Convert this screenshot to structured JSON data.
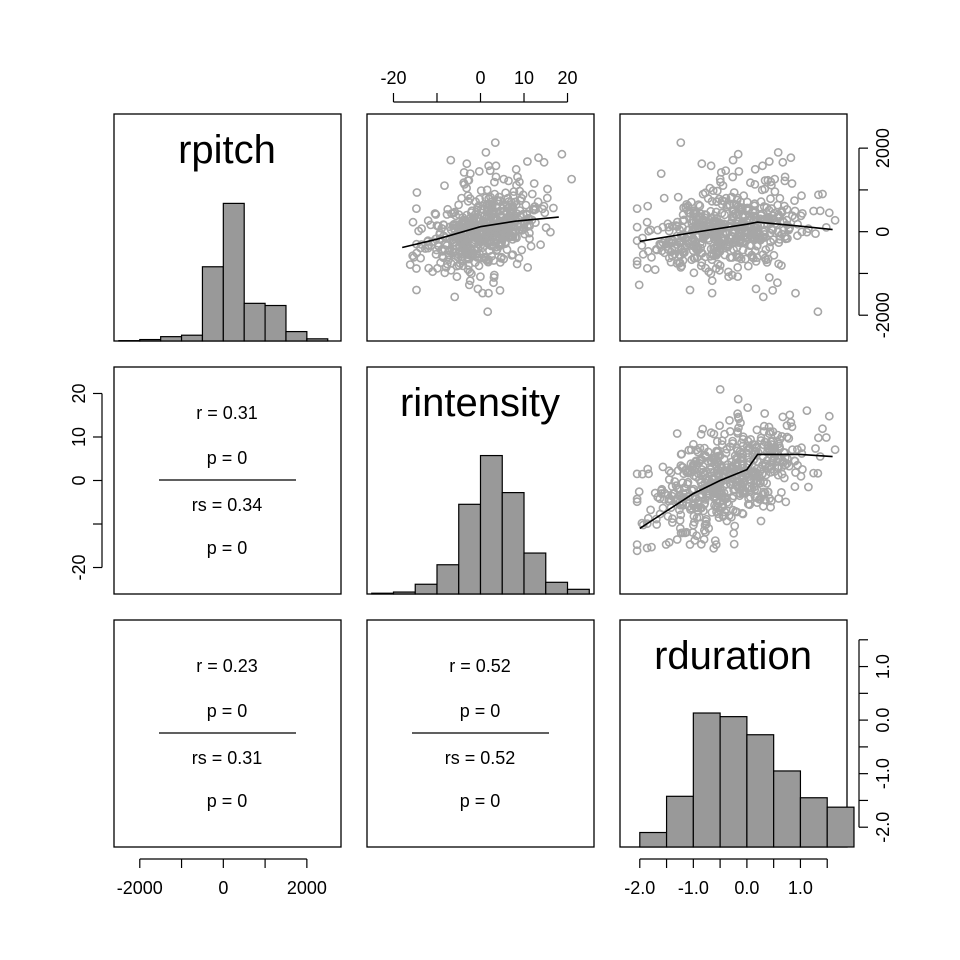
{
  "colors": {
    "point": "#a6a6a6",
    "bar": "#999999",
    "line": "#000000"
  },
  "chart_data": {
    "type": "scatter",
    "variables": [
      "rpitch",
      "rintensity",
      "rduration"
    ],
    "variable_ranges": {
      "rpitch": [
        -2400,
        2600
      ],
      "rintensity": [
        -24,
        24
      ],
      "rduration": [
        -2.2,
        1.7
      ]
    },
    "axes": {
      "top": {
        "variable": "rintensity",
        "ticks": [
          -20,
          -10,
          0,
          10,
          20
        ],
        "labels": [
          "-20",
          "",
          "0",
          "10",
          "20"
        ]
      },
      "right_row1": {
        "variable": "rpitch",
        "ticks": [
          -2000,
          -1000,
          0,
          1000,
          2000
        ],
        "labels": [
          "-2000",
          "",
          "0",
          "",
          "2000"
        ]
      },
      "left_row2": {
        "variable": "rintensity",
        "ticks": [
          -20,
          -10,
          0,
          10,
          20
        ],
        "labels": [
          "-20",
          "",
          "0",
          "10",
          "20"
        ]
      },
      "right_row3": {
        "variable": "rduration",
        "ticks": [
          -2.0,
          -1.5,
          -1.0,
          -0.5,
          0.0,
          0.5,
          1.0,
          1.5
        ],
        "labels": [
          "-2.0",
          "",
          "-1.0",
          "",
          "0.0",
          "",
          "1.0",
          ""
        ]
      },
      "bottom_col1": {
        "variable": "rpitch",
        "ticks": [
          -2000,
          -1000,
          0,
          1000,
          2000
        ],
        "labels": [
          "-2000",
          "",
          "0",
          "",
          "2000"
        ]
      },
      "bottom_col3": {
        "variable": "rduration",
        "ticks": [
          -2.0,
          -1.5,
          -1.0,
          -0.5,
          0.0,
          0.5,
          1.0,
          1.5
        ],
        "labels": [
          "-2.0",
          "",
          "-1.0",
          "",
          "0.0",
          "",
          "1.0",
          ""
        ]
      }
    },
    "histograms": {
      "rpitch": {
        "breaks": [
          -2500,
          -2000,
          -1500,
          -1000,
          -500,
          0,
          500,
          1000,
          1500,
          2000,
          2500
        ],
        "counts": [
          1,
          4,
          12,
          16,
          205,
          380,
          104,
          98,
          26,
          6
        ],
        "ymax": 420
      },
      "rintensity": {
        "breaks": [
          -25,
          -20,
          -15,
          -10,
          -5,
          0,
          5,
          10,
          15,
          20,
          25
        ],
        "counts": [
          2,
          5,
          25,
          75,
          230,
          355,
          260,
          105,
          30,
          12
        ],
        "ymax": 390
      },
      "rduration": {
        "breaks": [
          -2.0,
          -1.5,
          -1.0,
          -0.5,
          0.0,
          0.5,
          1.0,
          1.5,
          2.0
        ],
        "counts": [
          20,
          70,
          185,
          180,
          155,
          105,
          68,
          55
        ],
        "ymax": 210
      }
    },
    "smooth_lines": {
      "rintensity_vs_rpitch": {
        "x": [
          -18,
          -10,
          0,
          8,
          18
        ],
        "y": [
          -380,
          -180,
          120,
          250,
          350
        ]
      },
      "rduration_vs_rpitch": {
        "x": [
          -2.0,
          -1.0,
          0.0,
          0.2,
          1.0,
          1.6
        ],
        "y": [
          -230,
          -20,
          180,
          230,
          130,
          50
        ]
      },
      "rduration_vs_rintensity": {
        "x": [
          -2.0,
          -1.5,
          -1.0,
          -0.5,
          0.0,
          0.2,
          1.0,
          1.6
        ],
        "y": [
          -11,
          -7,
          -3,
          0,
          2.5,
          6,
          6,
          5.5
        ]
      }
    },
    "correlations": {
      "rpitch_rintensity": {
        "r": "r = 0.31",
        "p": "p = 0",
        "rs": "rs = 0.34",
        "ps": "p = 0"
      },
      "rpitch_rduration": {
        "r": "r = 0.23",
        "p": "p = 0",
        "rs": "rs = 0.31",
        "ps": "p = 0"
      },
      "rintensity_rduration": {
        "r": "r = 0.52",
        "p": "p = 0",
        "rs": "rs = 0.52",
        "ps": "p = 0"
      }
    },
    "scatter_points_note": "approx. 600 observations per panel (gray open circles)"
  }
}
